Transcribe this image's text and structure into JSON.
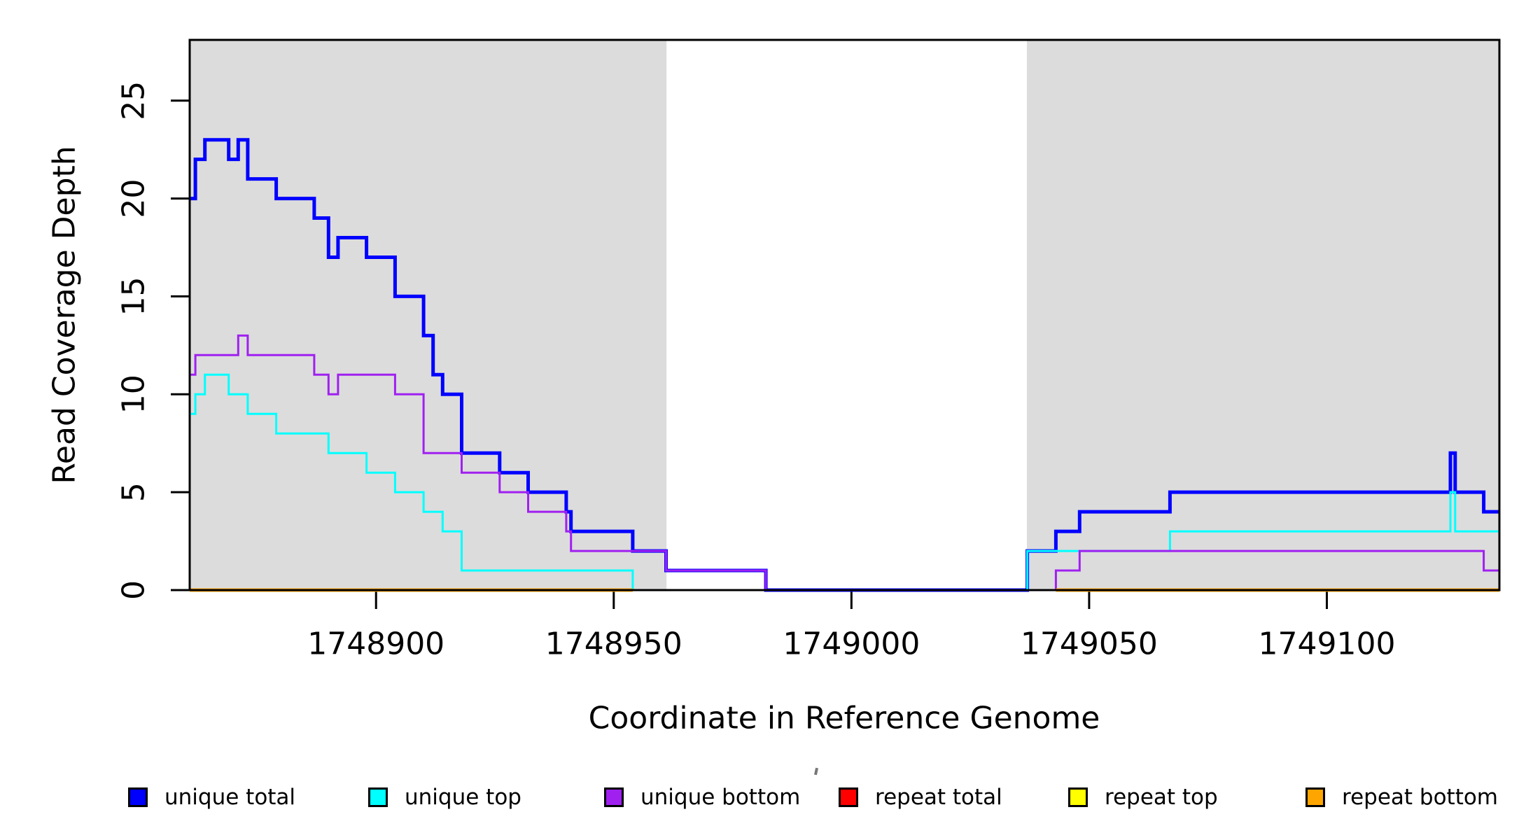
{
  "figure": {
    "background": "#ffffff",
    "plot_border_color": "#000000",
    "shaded_band_color": "#DCDCDC"
  },
  "legend": {
    "items": [
      {
        "label": "unique total",
        "color": "#0000FF"
      },
      {
        "label": "unique top",
        "color": "#00FFFF"
      },
      {
        "label": "unique bottom",
        "color": "#A020F0"
      },
      {
        "label": "repeat total",
        "color": "#FF0000"
      },
      {
        "label": "repeat top",
        "color": "#FFFF00"
      },
      {
        "label": "repeat bottom",
        "color": "#FFA500"
      }
    ]
  },
  "chart_data": {
    "type": "line",
    "step": true,
    "title": "",
    "xlabel": "Coordinate in Reference Genome",
    "ylabel": "Read Coverage Depth",
    "x_range": [
      1748860.8,
      1749136.3
    ],
    "y_range": [
      0,
      28.1
    ],
    "x_ticks": [
      1748900,
      1748950,
      1749000,
      1749050,
      1749100
    ],
    "y_ticks": [
      0,
      5,
      10,
      15,
      20,
      25
    ],
    "grid": false,
    "legend_position": "bottom",
    "shaded_regions": [
      {
        "x0": 1748860.8,
        "x1": 1748961.1
      },
      {
        "x0": 1749036.9,
        "x1": 1749136.3
      }
    ],
    "series": [
      {
        "name": "unique total",
        "color": "#0000FF",
        "line_width": 5,
        "segments": [
          [
            [
              1748860.8,
              20
            ],
            [
              1748862,
              22
            ],
            [
              1748864,
              23
            ],
            [
              1748869,
              22
            ],
            [
              1748871,
              23
            ],
            [
              1748873,
              21
            ],
            [
              1748879,
              20
            ],
            [
              1748887,
              19
            ],
            [
              1748890,
              17
            ],
            [
              1748892,
              18
            ],
            [
              1748898,
              17
            ],
            [
              1748904,
              15
            ],
            [
              1748910,
              13
            ],
            [
              1748912,
              11
            ],
            [
              1748914,
              10
            ],
            [
              1748918,
              7
            ],
            [
              1748926,
              6
            ],
            [
              1748932,
              5
            ],
            [
              1748940,
              4
            ],
            [
              1748941,
              3
            ],
            [
              1748954,
              2
            ],
            [
              1748961,
              1
            ],
            [
              1748982,
              0
            ],
            [
              1749037,
              2
            ],
            [
              1749043,
              3
            ],
            [
              1749048,
              4
            ],
            [
              1749067,
              5
            ],
            [
              1749126,
              7
            ],
            [
              1749127,
              5
            ],
            [
              1749133,
              4
            ],
            [
              1749136.3,
              4
            ]
          ]
        ]
      },
      {
        "name": "unique top",
        "color": "#00FFFF",
        "line_width": 3,
        "segments": [
          [
            [
              1748860.8,
              9
            ],
            [
              1748862,
              10
            ],
            [
              1748864,
              11
            ],
            [
              1748869,
              10
            ],
            [
              1748873,
              9
            ],
            [
              1748879,
              8
            ],
            [
              1748890,
              7
            ],
            [
              1748898,
              6
            ],
            [
              1748904,
              5
            ],
            [
              1748910,
              4
            ],
            [
              1748914,
              3
            ],
            [
              1748918,
              1
            ],
            [
              1748954,
              0
            ],
            [
              1749037,
              2
            ],
            [
              1749067,
              3
            ],
            [
              1749126,
              5
            ],
            [
              1749127,
              3
            ],
            [
              1749136.3,
              3
            ]
          ]
        ]
      },
      {
        "name": "unique bottom",
        "color": "#A020F0",
        "line_width": 3,
        "segments": [
          [
            [
              1748860.8,
              11
            ],
            [
              1748862,
              12
            ],
            [
              1748871,
              13
            ],
            [
              1748873,
              12
            ],
            [
              1748887,
              11
            ],
            [
              1748890,
              10
            ],
            [
              1748892,
              11
            ],
            [
              1748904,
              10
            ],
            [
              1748910,
              7
            ],
            [
              1748918,
              6
            ],
            [
              1748926,
              5
            ],
            [
              1748932,
              4
            ],
            [
              1748940,
              3
            ],
            [
              1748941,
              2
            ],
            [
              1748961,
              1
            ],
            [
              1748982,
              0
            ],
            [
              1749043,
              1
            ],
            [
              1749048,
              2
            ],
            [
              1749133,
              1
            ],
            [
              1749136.3,
              1
            ]
          ]
        ]
      },
      {
        "name": "repeat total",
        "color": "#FF0000",
        "line_width": 3,
        "segments": [
          [
            [
              1748954,
              0
            ],
            [
              1748982,
              0
            ]
          ]
        ]
      },
      {
        "name": "repeat top",
        "color": "#FFFF00",
        "line_width": 3,
        "segments": []
      },
      {
        "name": "repeat bottom",
        "color": "#FFA500",
        "line_width": 5,
        "segments": [
          [
            [
              1748860.8,
              0
            ],
            [
              1748954,
              0
            ]
          ],
          [
            [
              1749043,
              0
            ],
            [
              1749136.3,
              0
            ]
          ]
        ]
      }
    ]
  }
}
